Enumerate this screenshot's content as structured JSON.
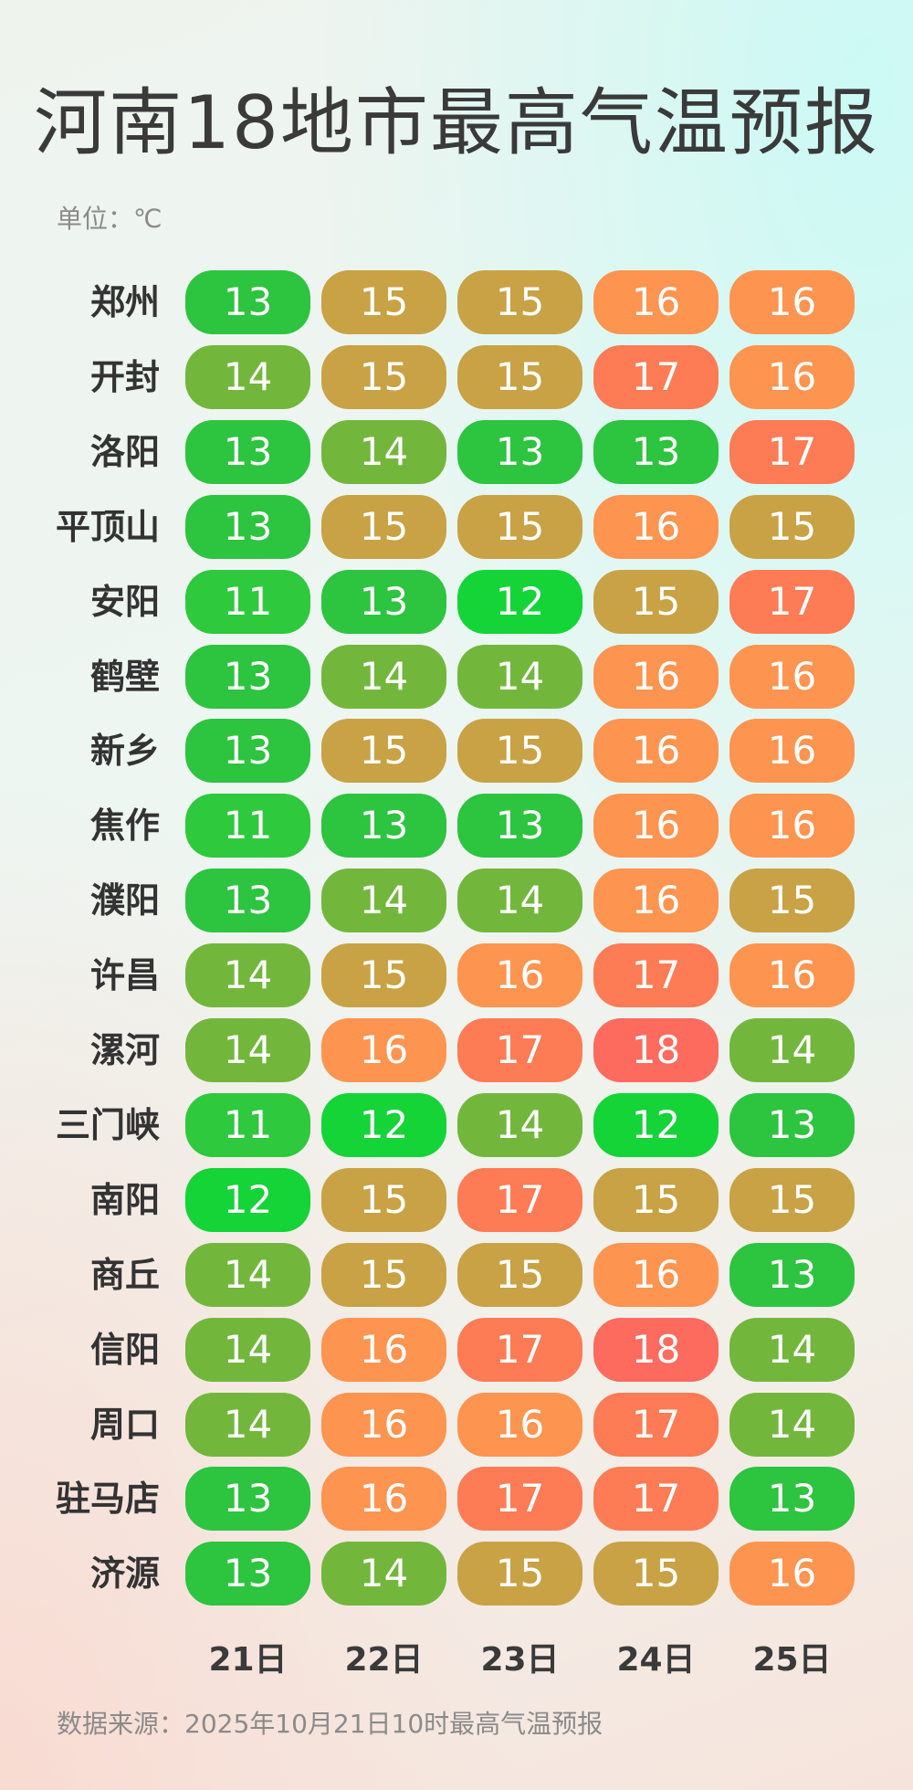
{
  "title": "河南18地市最高气温预报",
  "unit_label": "单位：℃",
  "source_label": "数据来源：2025年10月21日10时最高气温预报",
  "colors": {
    "11": "#2ec93c",
    "12": "#14d437",
    "13": "#2dc43f",
    "14": "#72b73c",
    "15": "#c8a244",
    "16": "#fd9450",
    "17": "#fd7b55",
    "18": "#fd6b5e"
  },
  "chart_data": {
    "type": "table",
    "days": [
      "21日",
      "22日",
      "23日",
      "24日",
      "25日"
    ],
    "rows": [
      {
        "city": "郑州",
        "values": [
          13,
          15,
          15,
          16,
          16
        ]
      },
      {
        "city": "开封",
        "values": [
          14,
          15,
          15,
          17,
          16
        ]
      },
      {
        "city": "洛阳",
        "values": [
          13,
          14,
          13,
          13,
          17
        ]
      },
      {
        "city": "平顶山",
        "values": [
          13,
          15,
          15,
          16,
          15
        ]
      },
      {
        "city": "安阳",
        "values": [
          11,
          13,
          12,
          15,
          17
        ]
      },
      {
        "city": "鹤壁",
        "values": [
          13,
          14,
          14,
          16,
          16
        ]
      },
      {
        "city": "新乡",
        "values": [
          13,
          15,
          15,
          16,
          16
        ]
      },
      {
        "city": "焦作",
        "values": [
          11,
          13,
          13,
          16,
          16
        ]
      },
      {
        "city": "濮阳",
        "values": [
          13,
          14,
          14,
          16,
          15
        ]
      },
      {
        "city": "许昌",
        "values": [
          14,
          15,
          16,
          17,
          16
        ]
      },
      {
        "city": "漯河",
        "values": [
          14,
          16,
          17,
          18,
          14
        ]
      },
      {
        "city": "三门峡",
        "values": [
          11,
          12,
          14,
          12,
          13
        ]
      },
      {
        "city": "南阳",
        "values": [
          12,
          15,
          17,
          15,
          15
        ]
      },
      {
        "city": "商丘",
        "values": [
          14,
          15,
          15,
          16,
          13
        ]
      },
      {
        "city": "信阳",
        "values": [
          14,
          16,
          17,
          18,
          14
        ]
      },
      {
        "city": "周口",
        "values": [
          14,
          16,
          16,
          17,
          14
        ]
      },
      {
        "city": "驻马店",
        "values": [
          13,
          16,
          17,
          17,
          13
        ]
      },
      {
        "city": "济源",
        "values": [
          13,
          14,
          15,
          15,
          16
        ]
      }
    ]
  }
}
